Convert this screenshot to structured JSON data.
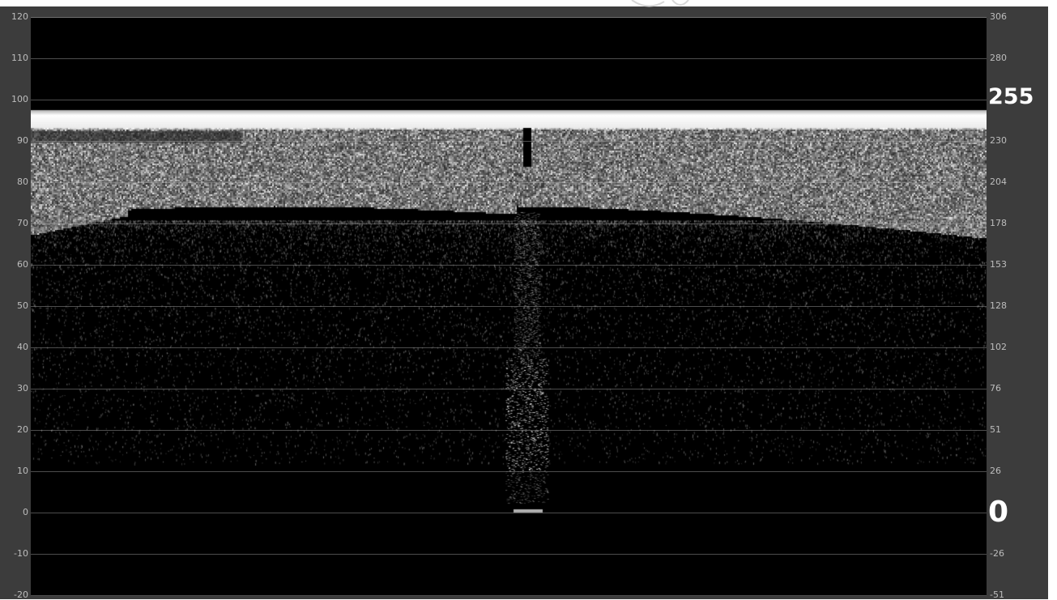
{
  "scope": {
    "type": "waveform-monitor",
    "left_axis_ticks": [
      "120",
      "110",
      "100",
      "90",
      "80",
      "70",
      "60",
      "50",
      "40",
      "30",
      "20",
      "10",
      "0",
      "-10",
      "-20"
    ],
    "right_axis_ticks": [
      "306",
      "280",
      "255",
      "230",
      "204",
      "178",
      "153",
      "128",
      "102",
      "76",
      "51",
      "26",
      "0",
      "-26",
      "-51"
    ],
    "highlight_labels": {
      "top": "255",
      "bottom": "0"
    },
    "colors": {
      "frame": "#3c3c3c",
      "display": "#000000",
      "trace": "#ffffff",
      "grid": "#aaaaaa",
      "label": "#bdbdbd"
    }
  }
}
